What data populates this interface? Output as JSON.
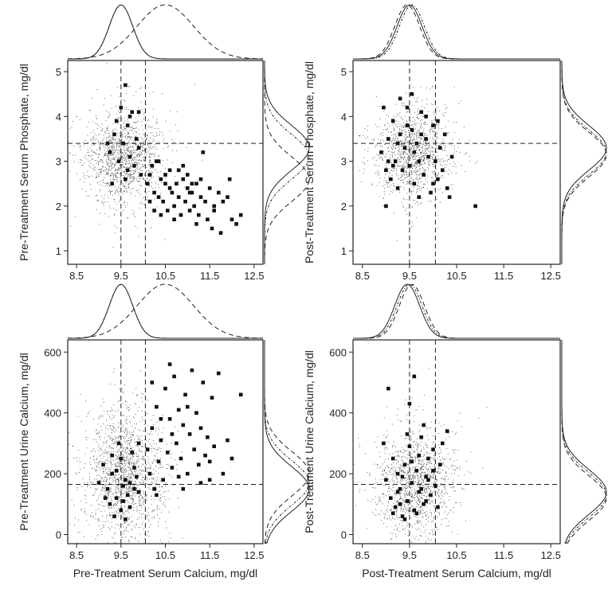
{
  "chart_data": [
    {
      "type": "scatter",
      "panel": "top-left",
      "xlabel": "",
      "ylabel": "Pre-Treatment Serum Phosphate, mg/dl",
      "xlim": [
        8.3,
        12.7
      ],
      "ylim": [
        0.7,
        5.25
      ],
      "xticks": [
        "8.5",
        "9.5",
        "10.5",
        "11.5",
        "12.5"
      ],
      "yticks": [
        "1",
        "2",
        "3",
        "4",
        "5"
      ],
      "reference_lines": {
        "vertical": [
          9.5,
          10.05
        ],
        "horizontal": [
          3.4
        ]
      },
      "cloud": {
        "center": [
          9.55,
          3.1
        ],
        "spread": [
          0.45,
          0.5
        ],
        "count": 1400
      },
      "marked_points": [
        [
          9.25,
          3.2
        ],
        [
          9.35,
          3.6
        ],
        [
          9.45,
          3.0
        ],
        [
          9.55,
          3.4
        ],
        [
          9.6,
          2.6
        ],
        [
          9.65,
          3.8
        ],
        [
          9.7,
          3.1
        ],
        [
          9.8,
          2.9
        ],
        [
          9.85,
          3.5
        ],
        [
          9.9,
          3.3
        ],
        [
          9.95,
          2.7
        ],
        [
          9.5,
          4.2
        ],
        [
          9.4,
          3.9
        ],
        [
          9.7,
          4.0
        ],
        [
          9.3,
          2.5
        ],
        [
          9.6,
          4.7
        ],
        [
          9.75,
          4.1
        ],
        [
          9.2,
          3.4
        ],
        [
          9.9,
          4.1
        ],
        [
          9.65,
          2.8
        ],
        [
          10.1,
          2.5
        ],
        [
          10.2,
          2.9
        ],
        [
          10.25,
          2.3
        ],
        [
          10.3,
          3.0
        ],
        [
          10.35,
          2.2
        ],
        [
          10.4,
          2.6
        ],
        [
          10.45,
          2.1
        ],
        [
          10.5,
          2.5
        ],
        [
          10.55,
          1.9
        ],
        [
          10.6,
          2.8
        ],
        [
          10.65,
          2.3
        ],
        [
          10.7,
          2.0
        ],
        [
          10.75,
          2.5
        ],
        [
          10.8,
          2.2
        ],
        [
          10.85,
          1.8
        ],
        [
          10.9,
          2.6
        ],
        [
          10.95,
          2.1
        ],
        [
          11.0,
          2.4
        ],
        [
          11.05,
          1.9
        ],
        [
          11.1,
          2.3
        ],
        [
          11.15,
          2.0
        ],
        [
          11.2,
          2.5
        ],
        [
          11.25,
          1.8
        ],
        [
          11.3,
          2.2
        ],
        [
          11.35,
          3.2
        ],
        [
          11.4,
          2.1
        ],
        [
          11.45,
          1.7
        ],
        [
          11.5,
          2.4
        ],
        [
          11.55,
          1.5
        ],
        [
          11.6,
          2.0
        ],
        [
          11.7,
          2.3
        ],
        [
          11.75,
          1.4
        ],
        [
          11.8,
          2.1
        ],
        [
          11.9,
          2.2
        ],
        [
          12.0,
          1.7
        ],
        [
          12.1,
          1.6
        ],
        [
          10.15,
          2.7
        ],
        [
          10.35,
          3.0
        ],
        [
          10.6,
          2.4
        ],
        [
          10.8,
          2.8
        ],
        [
          11.0,
          2.7
        ],
        [
          11.1,
          2.5
        ],
        [
          10.4,
          1.8
        ],
        [
          10.9,
          2.9
        ],
        [
          11.3,
          2.6
        ],
        [
          11.6,
          1.9
        ],
        [
          11.95,
          2.6
        ],
        [
          10.25,
          1.9
        ],
        [
          10.7,
          1.7
        ],
        [
          11.2,
          1.6
        ],
        [
          12.2,
          1.8
        ],
        [
          10.5,
          2.7
        ],
        [
          11.05,
          2.3
        ],
        [
          10.15,
          2.1
        ]
      ],
      "x_density": {
        "solid_peak": 9.5,
        "dashed_dot_peak": 9.5,
        "dashed_peak": 10.5
      },
      "y_density": {
        "solid_peak": 3.3,
        "dashed_dot_peak": 3.1,
        "dashed_peak": 2.6
      }
    },
    {
      "type": "scatter",
      "panel": "top-right",
      "xlabel": "",
      "ylabel": "Post-Treatment Serum Phosphate, mg/dl",
      "xlim": [
        8.3,
        12.7
      ],
      "ylim": [
        0.7,
        5.25
      ],
      "xticks": [
        "8.5",
        "9.5",
        "10.5",
        "11.5",
        "12.5"
      ],
      "yticks": [
        "1",
        "2",
        "3",
        "4",
        "5"
      ],
      "reference_lines": {
        "vertical": [
          9.5,
          10.05
        ],
        "horizontal": [
          3.4
        ]
      },
      "cloud": {
        "center": [
          9.55,
          3.2
        ],
        "spread": [
          0.42,
          0.5
        ],
        "count": 1200
      },
      "marked_points": [
        [
          8.9,
          3.2
        ],
        [
          9.0,
          2.8
        ],
        [
          9.05,
          3.5
        ],
        [
          9.1,
          2.6
        ],
        [
          9.15,
          3.9
        ],
        [
          9.2,
          3.0
        ],
        [
          9.25,
          2.4
        ],
        [
          9.3,
          3.6
        ],
        [
          9.35,
          2.8
        ],
        [
          9.4,
          3.3
        ],
        [
          9.45,
          4.2
        ],
        [
          9.5,
          2.9
        ],
        [
          9.55,
          3.7
        ],
        [
          9.6,
          2.5
        ],
        [
          9.65,
          3.4
        ],
        [
          9.7,
          3.0
        ],
        [
          9.75,
          4.1
        ],
        [
          9.8,
          2.7
        ],
        [
          9.85,
          3.5
        ],
        [
          9.9,
          3.1
        ],
        [
          9.95,
          2.3
        ],
        [
          10.0,
          3.8
        ],
        [
          10.05,
          3.0
        ],
        [
          10.1,
          2.6
        ],
        [
          10.15,
          3.3
        ],
        [
          10.2,
          2.8
        ],
        [
          10.25,
          3.6
        ],
        [
          10.3,
          2.4
        ],
        [
          10.4,
          3.1
        ],
        [
          10.9,
          2.0
        ],
        [
          9.0,
          2.0
        ],
        [
          8.95,
          4.2
        ],
        [
          9.3,
          4.4
        ],
        [
          9.55,
          4.5
        ],
        [
          9.7,
          2.2
        ],
        [
          9.45,
          3.8
        ],
        [
          9.15,
          2.9
        ],
        [
          9.85,
          4.0
        ],
        [
          10.0,
          2.5
        ],
        [
          9.6,
          3.2
        ],
        [
          10.35,
          2.2
        ],
        [
          9.25,
          3.4
        ],
        [
          9.75,
          3.6
        ],
        [
          9.05,
          3.0
        ],
        [
          10.1,
          3.9
        ]
      ],
      "x_density": {
        "solid_peak": 9.5,
        "dashed_dot_peak": 9.55,
        "dashed_peak": 9.45
      },
      "y_density": {
        "solid_peak": 3.3,
        "dashed_dot_peak": 3.2,
        "dashed_peak": 3.15
      }
    },
    {
      "type": "scatter",
      "panel": "bottom-left",
      "xlabel": "Pre-Treatment Serum Calcium, mg/dl",
      "ylabel": "Pre-Treatment Urine Calcium, mg/dl",
      "xlim": [
        8.3,
        12.7
      ],
      "ylim": [
        -30,
        640
      ],
      "xticks": [
        "8.5",
        "9.5",
        "10.5",
        "11.5",
        "12.5"
      ],
      "yticks": [
        "0",
        "200",
        "400",
        "600"
      ],
      "reference_lines": {
        "vertical": [
          9.5,
          10.05
        ],
        "horizontal": [
          165
        ]
      },
      "cloud": {
        "center": [
          9.55,
          200
        ],
        "spread": [
          0.45,
          110
        ],
        "count": 1600
      },
      "marked_points": [
        [
          9.2,
          150
        ],
        [
          9.3,
          200
        ],
        [
          9.4,
          120
        ],
        [
          9.5,
          250
        ],
        [
          9.6,
          180
        ],
        [
          9.7,
          90
        ],
        [
          9.8,
          220
        ],
        [
          9.35,
          60
        ],
        [
          9.45,
          300
        ],
        [
          9.55,
          160
        ],
        [
          9.65,
          130
        ],
        [
          9.75,
          270
        ],
        [
          9.25,
          100
        ],
        [
          9.85,
          190
        ],
        [
          9.9,
          140
        ],
        [
          9.0,
          170
        ],
        [
          9.1,
          230
        ],
        [
          9.6,
          50
        ],
        [
          9.4,
          210
        ],
        [
          9.7,
          170
        ],
        [
          9.5,
          80
        ],
        [
          9.3,
          260
        ],
        [
          9.55,
          110
        ],
        [
          9.8,
          150
        ],
        [
          9.9,
          300
        ],
        [
          9.15,
          120
        ],
        [
          10.1,
          280
        ],
        [
          10.15,
          200
        ],
        [
          10.2,
          350
        ],
        [
          10.25,
          150
        ],
        [
          10.3,
          420
        ],
        [
          10.35,
          240
        ],
        [
          10.4,
          310
        ],
        [
          10.45,
          180
        ],
        [
          10.5,
          480
        ],
        [
          10.55,
          270
        ],
        [
          10.6,
          380
        ],
        [
          10.65,
          220
        ],
        [
          10.7,
          520
        ],
        [
          10.75,
          300
        ],
        [
          10.8,
          410
        ],
        [
          10.85,
          250
        ],
        [
          10.9,
          360
        ],
        [
          10.95,
          460
        ],
        [
          11.0,
          200
        ],
        [
          11.05,
          330
        ],
        [
          11.1,
          540
        ],
        [
          11.15,
          280
        ],
        [
          11.2,
          400
        ],
        [
          11.25,
          230
        ],
        [
          11.3,
          350
        ],
        [
          11.35,
          500
        ],
        [
          11.4,
          260
        ],
        [
          11.45,
          320
        ],
        [
          11.5,
          180
        ],
        [
          11.55,
          450
        ],
        [
          11.6,
          290
        ],
        [
          11.7,
          530
        ],
        [
          11.8,
          200
        ],
        [
          11.9,
          310
        ],
        [
          12.0,
          250
        ],
        [
          12.2,
          460
        ],
        [
          10.2,
          500
        ],
        [
          10.6,
          560
        ],
        [
          10.9,
          150
        ],
        [
          11.3,
          170
        ],
        [
          10.4,
          380
        ],
        [
          10.8,
          190
        ],
        [
          11.0,
          420
        ],
        [
          11.5,
          240
        ],
        [
          10.3,
          130
        ],
        [
          10.65,
          330
        ]
      ],
      "x_density": {
        "solid_peak": 9.5,
        "dashed_dot_peak": 9.5,
        "dashed_peak": 10.5
      },
      "y_density": {
        "solid_peak": 150,
        "dashed_dot_peak": 170,
        "dashed_peak": 200
      }
    },
    {
      "type": "scatter",
      "panel": "bottom-right",
      "xlabel": "Post-Treatment Serum Calcium, mg/dl",
      "ylabel": "Post-Treatment Urine Calcium, mg/dl",
      "xlim": [
        8.3,
        12.7
      ],
      "ylim": [
        -30,
        640
      ],
      "xticks": [
        "8.5",
        "9.5",
        "10.5",
        "11.5",
        "12.5"
      ],
      "yticks": [
        "0",
        "200",
        "400",
        "600"
      ],
      "reference_lines": {
        "vertical": [
          9.5,
          10.05
        ],
        "horizontal": [
          165
        ]
      },
      "cloud": {
        "center": [
          9.6,
          170
        ],
        "spread": [
          0.45,
          90
        ],
        "count": 1300
      },
      "marked_points": [
        [
          9.0,
          180
        ],
        [
          9.1,
          120
        ],
        [
          9.15,
          250
        ],
        [
          9.2,
          90
        ],
        [
          9.25,
          200
        ],
        [
          9.3,
          150
        ],
        [
          9.35,
          60
        ],
        [
          9.4,
          230
        ],
        [
          9.45,
          110
        ],
        [
          9.5,
          290
        ],
        [
          9.55,
          170
        ],
        [
          9.6,
          80
        ],
        [
          9.65,
          210
        ],
        [
          9.7,
          140
        ],
        [
          9.75,
          320
        ],
        [
          9.8,
          100
        ],
        [
          9.85,
          190
        ],
        [
          9.9,
          250
        ],
        [
          9.95,
          130
        ],
        [
          10.0,
          210
        ],
        [
          10.05,
          160
        ],
        [
          10.1,
          90
        ],
        [
          10.2,
          300
        ],
        [
          10.3,
          340
        ],
        [
          8.95,
          300
        ],
        [
          9.05,
          480
        ],
        [
          9.5,
          430
        ],
        [
          9.6,
          520
        ],
        [
          9.8,
          360
        ],
        [
          9.4,
          50
        ],
        [
          9.65,
          70
        ],
        [
          9.55,
          240
        ],
        [
          9.25,
          140
        ],
        [
          9.7,
          260
        ],
        [
          9.9,
          180
        ],
        [
          10.15,
          230
        ],
        [
          9.35,
          190
        ],
        [
          9.45,
          330
        ],
        [
          9.85,
          110
        ],
        [
          9.15,
          70
        ],
        [
          10.0,
          280
        ],
        [
          9.75,
          150
        ],
        [
          9.3,
          100
        ]
      ],
      "x_density": {
        "solid_peak": 9.45,
        "dashed_dot_peak": 9.5,
        "dashed_peak": 9.55
      },
      "y_density": {
        "solid_peak": 140,
        "dashed_dot_peak": 130,
        "dashed_peak": 120
      }
    }
  ]
}
